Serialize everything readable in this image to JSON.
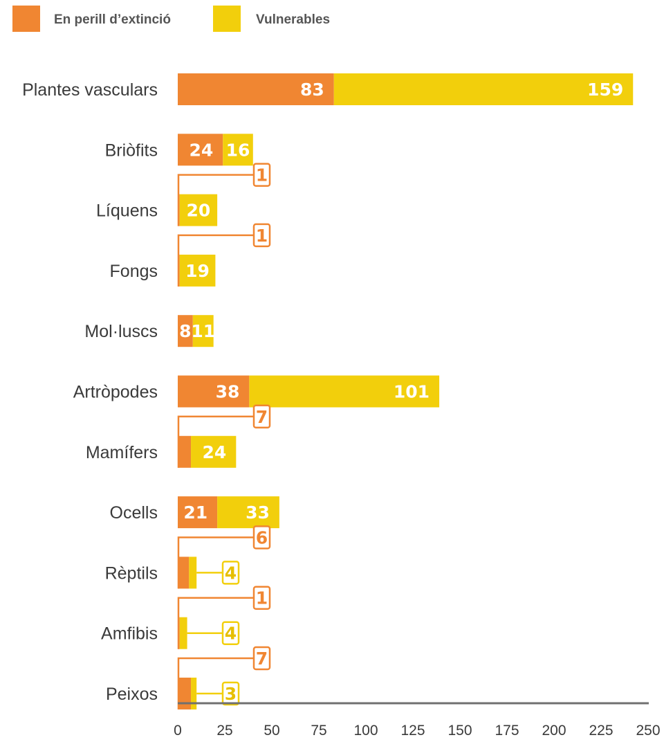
{
  "colors": {
    "endangered": "#f08632",
    "vulnerable": "#f2cf0c",
    "axis": "#707070",
    "text": "#3a3a3a",
    "value_text": "#ffffff"
  },
  "chart_data": {
    "type": "bar",
    "orientation": "horizontal",
    "stacked": true,
    "categories": [
      "Plantes vasculars",
      "Briòfits",
      "Líquens",
      "Fongs",
      "Mol·luscs",
      "Artròpodes",
      "Mamífers",
      "Ocells",
      "Rèptils",
      "Amfibis",
      "Peixos"
    ],
    "series": [
      {
        "name": "En perill d’extinció",
        "values": [
          83,
          24,
          1,
          1,
          8,
          38,
          7,
          21,
          6,
          1,
          7
        ]
      },
      {
        "name": "Vulnerables",
        "values": [
          159,
          16,
          20,
          19,
          11,
          101,
          24,
          33,
          4,
          4,
          3
        ]
      }
    ],
    "value_labels": [
      [
        "83",
        "159"
      ],
      [
        "24",
        "16"
      ],
      [
        "1",
        "20"
      ],
      [
        "1",
        "19"
      ],
      [
        "8",
        "11"
      ],
      [
        "38",
        "101"
      ],
      [
        "7",
        "24"
      ],
      [
        "21",
        "33"
      ],
      [
        "6",
        "4"
      ],
      [
        "1",
        "4"
      ],
      [
        "7",
        "3"
      ]
    ],
    "xlim": [
      0,
      250
    ],
    "xticks": [
      "0",
      "25",
      "50",
      "75",
      "100",
      "125",
      "150",
      "175",
      "200",
      "225",
      "250"
    ],
    "legend": "top-left",
    "grid": false,
    "title": "",
    "xlabel": "",
    "ylabel": ""
  }
}
